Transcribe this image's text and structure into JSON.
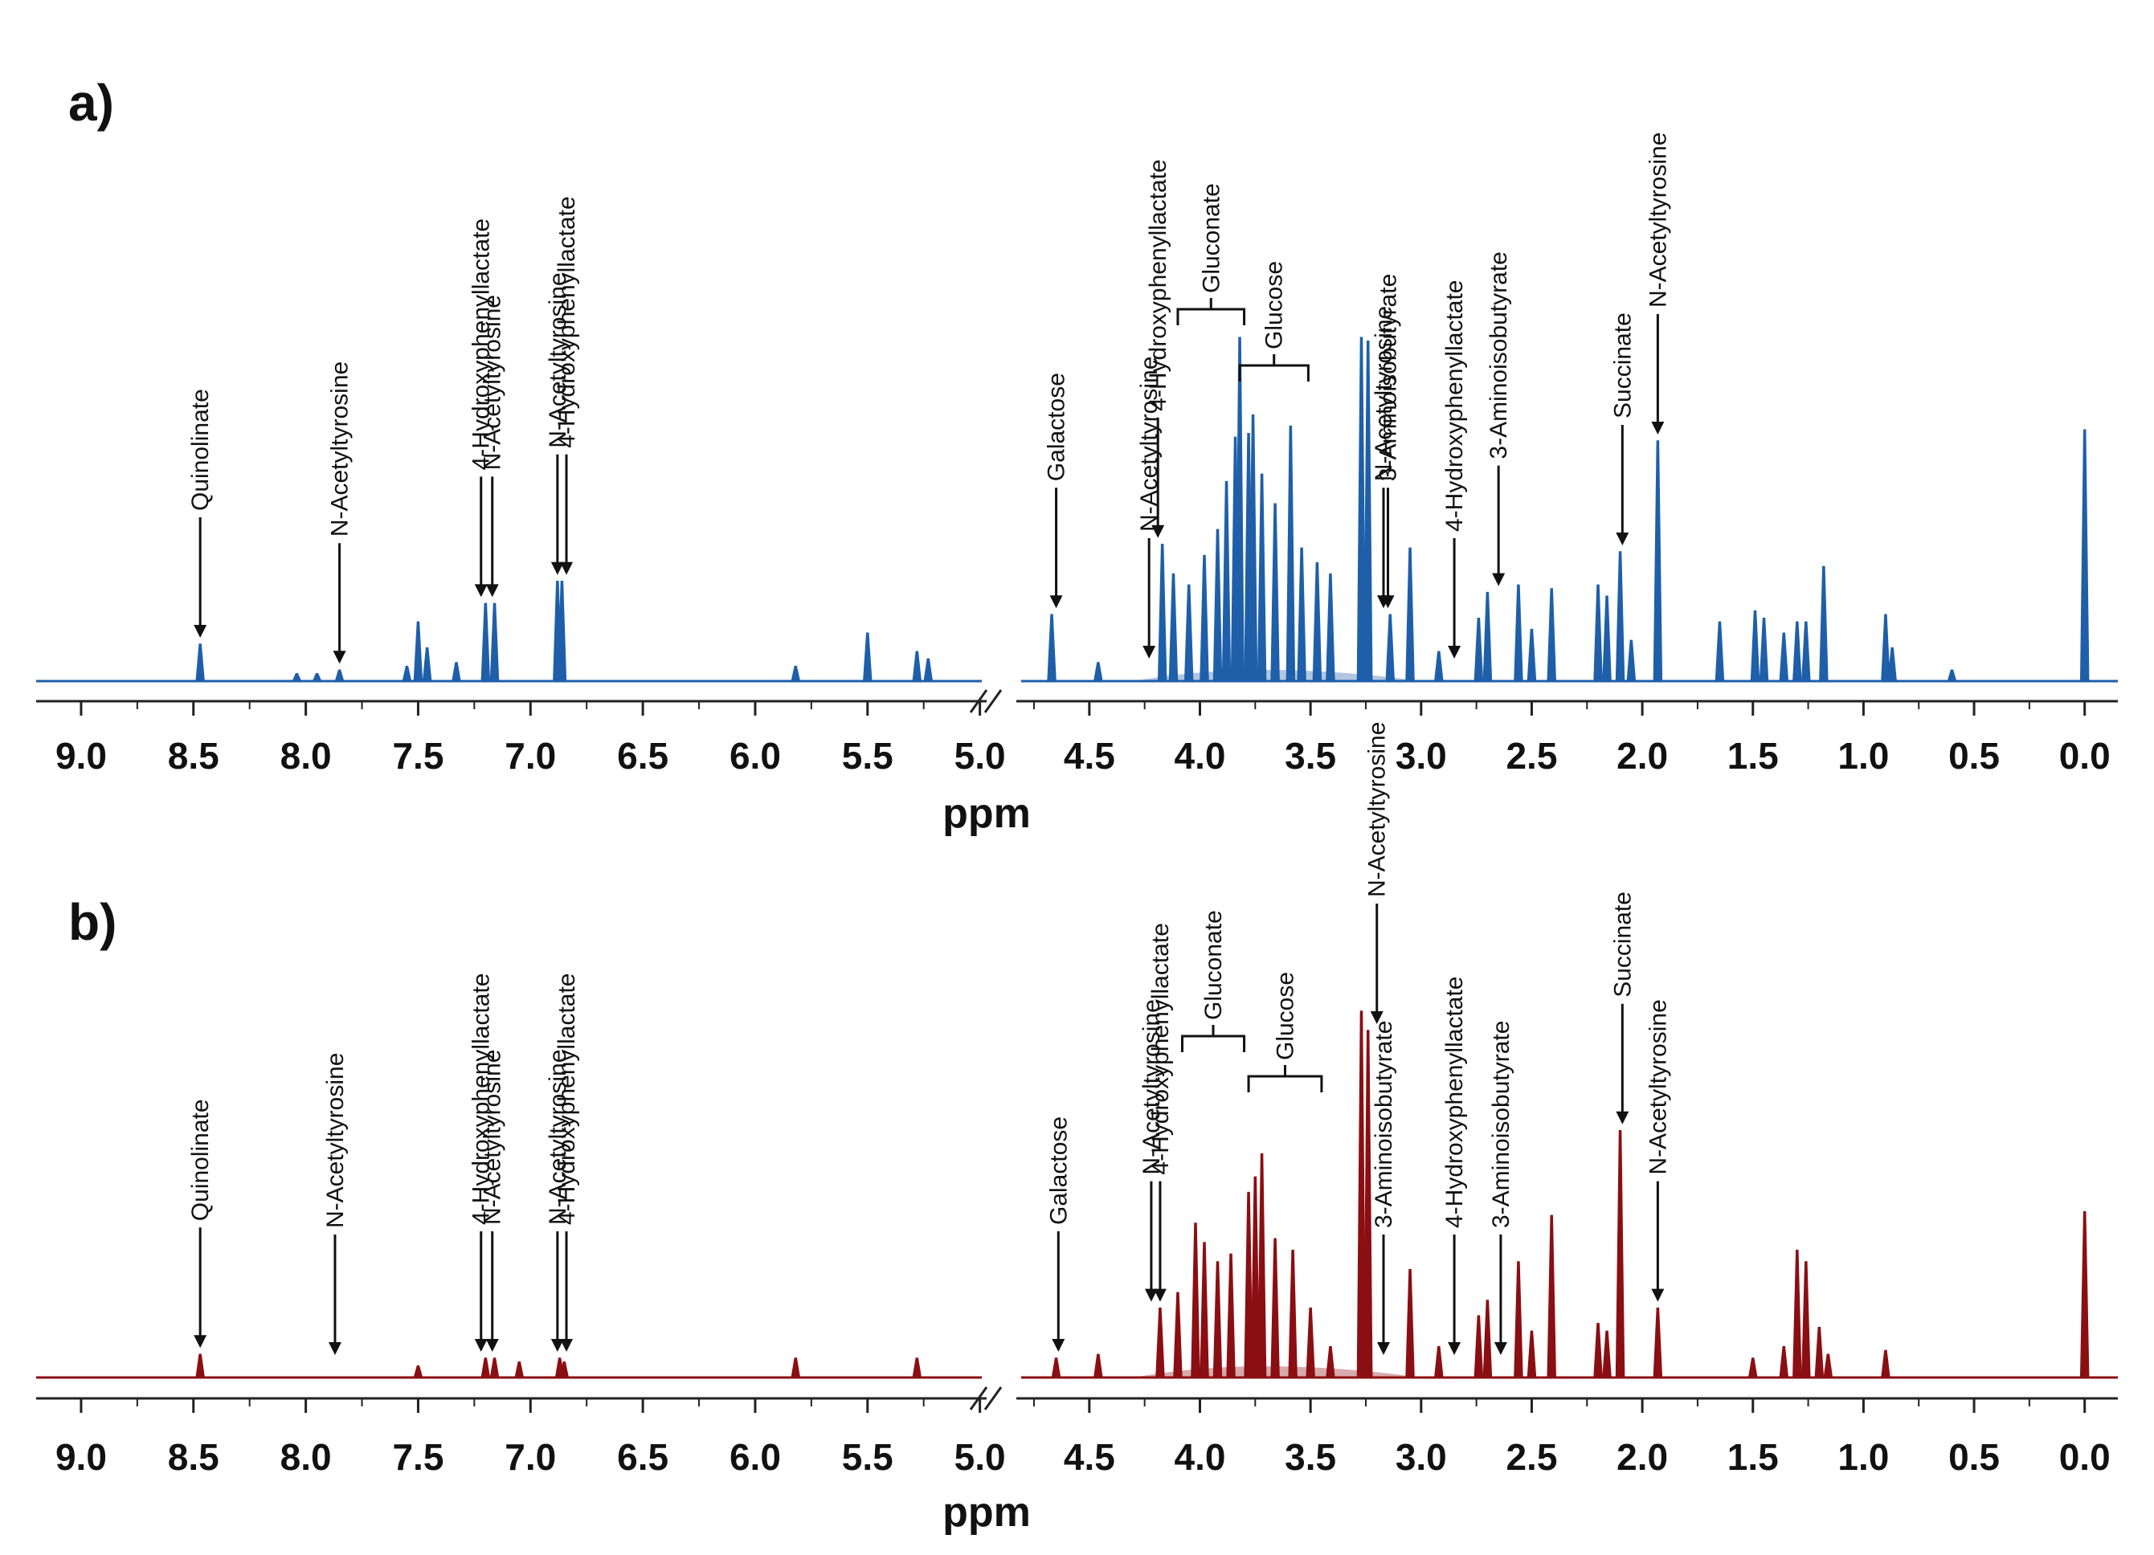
{
  "chart_data": [
    {
      "type": "line",
      "panel_label": "a)",
      "color": "#1f5faa",
      "xlabel": "ppm",
      "x_axis_reversed": true,
      "x_range": [
        9.2,
        -0.15
      ],
      "axis_break": [
        4.97,
        4.83
      ],
      "ticks": [
        "9.0",
        "8.5",
        "8.0",
        "7.5",
        "7.0",
        "6.5",
        "6.0",
        "5.5",
        "5.0",
        "4.5",
        "4.0",
        "3.5",
        "3.0",
        "2.5",
        "2.0",
        "1.5",
        "1.0",
        "0.5",
        "0.0"
      ],
      "tick_values": [
        9.0,
        8.5,
        8.0,
        7.5,
        7.0,
        6.5,
        6.0,
        5.5,
        5.0,
        4.5,
        4.0,
        3.5,
        3.0,
        2.5,
        2.0,
        1.5,
        1.0,
        0.5,
        0.0
      ],
      "peaks": [
        {
          "ppm": 8.47,
          "height": 0.1
        },
        {
          "ppm": 8.04,
          "height": 0.02
        },
        {
          "ppm": 7.95,
          "height": 0.02
        },
        {
          "ppm": 7.85,
          "height": 0.03
        },
        {
          "ppm": 7.55,
          "height": 0.04
        },
        {
          "ppm": 7.5,
          "height": 0.16
        },
        {
          "ppm": 7.46,
          "height": 0.09
        },
        {
          "ppm": 7.33,
          "height": 0.05
        },
        {
          "ppm": 7.2,
          "height": 0.21
        },
        {
          "ppm": 7.16,
          "height": 0.21
        },
        {
          "ppm": 6.88,
          "height": 0.27
        },
        {
          "ppm": 6.86,
          "height": 0.27
        },
        {
          "ppm": 5.82,
          "height": 0.04
        },
        {
          "ppm": 5.5,
          "height": 0.13
        },
        {
          "ppm": 5.28,
          "height": 0.08
        },
        {
          "ppm": 5.23,
          "height": 0.06
        },
        {
          "ppm": 4.67,
          "height": 0.18
        },
        {
          "ppm": 4.46,
          "height": 0.05
        },
        {
          "ppm": 4.17,
          "height": 0.37
        },
        {
          "ppm": 4.12,
          "height": 0.29
        },
        {
          "ppm": 4.05,
          "height": 0.26
        },
        {
          "ppm": 3.98,
          "height": 0.34
        },
        {
          "ppm": 3.92,
          "height": 0.41
        },
        {
          "ppm": 3.88,
          "height": 0.54
        },
        {
          "ppm": 3.84,
          "height": 0.66
        },
        {
          "ppm": 3.82,
          "height": 0.93
        },
        {
          "ppm": 3.78,
          "height": 0.67
        },
        {
          "ppm": 3.76,
          "height": 0.72
        },
        {
          "ppm": 3.72,
          "height": 0.56
        },
        {
          "ppm": 3.66,
          "height": 0.48
        },
        {
          "ppm": 3.59,
          "height": 0.69
        },
        {
          "ppm": 3.54,
          "height": 0.36
        },
        {
          "ppm": 3.47,
          "height": 0.32
        },
        {
          "ppm": 3.41,
          "height": 0.29
        },
        {
          "ppm": 3.27,
          "height": 0.93
        },
        {
          "ppm": 3.24,
          "height": 0.92
        },
        {
          "ppm": 3.14,
          "height": 0.18
        },
        {
          "ppm": 3.05,
          "height": 0.36
        },
        {
          "ppm": 2.92,
          "height": 0.08
        },
        {
          "ppm": 2.74,
          "height": 0.17
        },
        {
          "ppm": 2.7,
          "height": 0.24
        },
        {
          "ppm": 2.56,
          "height": 0.26
        },
        {
          "ppm": 2.5,
          "height": 0.14
        },
        {
          "ppm": 2.41,
          "height": 0.25
        },
        {
          "ppm": 2.2,
          "height": 0.26
        },
        {
          "ppm": 2.16,
          "height": 0.23
        },
        {
          "ppm": 2.1,
          "height": 0.35
        },
        {
          "ppm": 2.05,
          "height": 0.11
        },
        {
          "ppm": 1.93,
          "height": 0.65
        },
        {
          "ppm": 1.65,
          "height": 0.16
        },
        {
          "ppm": 1.49,
          "height": 0.19
        },
        {
          "ppm": 1.45,
          "height": 0.17
        },
        {
          "ppm": 1.36,
          "height": 0.13
        },
        {
          "ppm": 1.3,
          "height": 0.16
        },
        {
          "ppm": 1.26,
          "height": 0.16
        },
        {
          "ppm": 1.18,
          "height": 0.31
        },
        {
          "ppm": 0.9,
          "height": 0.18
        },
        {
          "ppm": 0.87,
          "height": 0.09
        },
        {
          "ppm": 0.6,
          "height": 0.03
        },
        {
          "ppm": 0.0,
          "height": 0.68
        }
      ],
      "annotations": [
        {
          "text": "Quinolinate",
          "ppm": 8.47,
          "type": "arrow"
        },
        {
          "text": "N-Acetyltyrosine",
          "ppm": 7.85,
          "type": "arrow"
        },
        {
          "text": "4-Hydroxyphenyllactate",
          "ppm": 7.22,
          "type": "arrow"
        },
        {
          "text": "N-Acetyltyrosine",
          "ppm": 7.17,
          "type": "arrow"
        },
        {
          "text": "N-Acetyltyrosine",
          "ppm": 6.88,
          "type": "arrow"
        },
        {
          "text": "4-Hydroxyphenyllactate",
          "ppm": 6.84,
          "type": "arrow"
        },
        {
          "text": "Galactose",
          "ppm": 4.65,
          "type": "arrow"
        },
        {
          "text": "N-Acetyltyrosine",
          "ppm": 4.23,
          "type": "arrow"
        },
        {
          "text": "4-Hydroxyphenyllactate",
          "ppm": 4.19,
          "type": "arrow"
        },
        {
          "text": "Gluconate",
          "ppm_range": [
            4.1,
            3.8
          ],
          "type": "bracket"
        },
        {
          "text": "Glucose",
          "ppm_range": [
            3.82,
            3.51
          ],
          "type": "bracket"
        },
        {
          "text": "N-Acetyltyrosine",
          "ppm": 3.17,
          "type": "arrow"
        },
        {
          "text": "3-Aminoisobutyrate",
          "ppm": 3.15,
          "type": "arrow"
        },
        {
          "text": "4-Hydroxyphenyllactate",
          "ppm": 2.85,
          "type": "arrow"
        },
        {
          "text": "3-Aminoisobutyrate",
          "ppm": 2.65,
          "type": "arrow"
        },
        {
          "text": "Succinate",
          "ppm": 2.09,
          "type": "arrow"
        },
        {
          "text": "N-Acetyltyrosine",
          "ppm": 1.93,
          "type": "arrow"
        }
      ]
    },
    {
      "type": "line",
      "panel_label": "b)",
      "color": "#8b0e12",
      "xlabel": "ppm",
      "x_axis_reversed": true,
      "x_range": [
        9.2,
        -0.15
      ],
      "axis_break": [
        4.97,
        4.83
      ],
      "ticks": [
        "9.0",
        "8.5",
        "8.0",
        "7.5",
        "7.0",
        "6.5",
        "6.0",
        "5.5",
        "5.0",
        "4.5",
        "4.0",
        "3.5",
        "3.0",
        "2.5",
        "2.0",
        "1.5",
        "1.0",
        "0.5",
        "0.0"
      ],
      "tick_values": [
        9.0,
        8.5,
        8.0,
        7.5,
        7.0,
        6.5,
        6.0,
        5.5,
        5.0,
        4.5,
        4.0,
        3.5,
        3.0,
        2.5,
        2.0,
        1.5,
        1.0,
        0.5,
        0.0
      ],
      "peaks": [
        {
          "ppm": 8.47,
          "height": 0.06
        },
        {
          "ppm": 7.5,
          "height": 0.03
        },
        {
          "ppm": 7.2,
          "height": 0.05
        },
        {
          "ppm": 7.16,
          "height": 0.05
        },
        {
          "ppm": 7.05,
          "height": 0.04
        },
        {
          "ppm": 6.87,
          "height": 0.05
        },
        {
          "ppm": 6.85,
          "height": 0.04
        },
        {
          "ppm": 5.82,
          "height": 0.05
        },
        {
          "ppm": 5.28,
          "height": 0.05
        },
        {
          "ppm": 4.65,
          "height": 0.05
        },
        {
          "ppm": 4.46,
          "height": 0.06
        },
        {
          "ppm": 4.18,
          "height": 0.18
        },
        {
          "ppm": 4.1,
          "height": 0.22
        },
        {
          "ppm": 4.02,
          "height": 0.4
        },
        {
          "ppm": 3.98,
          "height": 0.35
        },
        {
          "ppm": 3.92,
          "height": 0.3
        },
        {
          "ppm": 3.86,
          "height": 0.32
        },
        {
          "ppm": 3.78,
          "height": 0.48
        },
        {
          "ppm": 3.75,
          "height": 0.52
        },
        {
          "ppm": 3.72,
          "height": 0.58
        },
        {
          "ppm": 3.66,
          "height": 0.36
        },
        {
          "ppm": 3.58,
          "height": 0.33
        },
        {
          "ppm": 3.5,
          "height": 0.18
        },
        {
          "ppm": 3.41,
          "height": 0.08
        },
        {
          "ppm": 3.27,
          "height": 0.95
        },
        {
          "ppm": 3.24,
          "height": 0.9
        },
        {
          "ppm": 3.05,
          "height": 0.28
        },
        {
          "ppm": 2.92,
          "height": 0.08
        },
        {
          "ppm": 2.74,
          "height": 0.16
        },
        {
          "ppm": 2.7,
          "height": 0.2
        },
        {
          "ppm": 2.56,
          "height": 0.3
        },
        {
          "ppm": 2.5,
          "height": 0.12
        },
        {
          "ppm": 2.41,
          "height": 0.42
        },
        {
          "ppm": 2.2,
          "height": 0.14
        },
        {
          "ppm": 2.16,
          "height": 0.12
        },
        {
          "ppm": 2.1,
          "height": 0.64
        },
        {
          "ppm": 1.93,
          "height": 0.18
        },
        {
          "ppm": 1.5,
          "height": 0.05
        },
        {
          "ppm": 1.36,
          "height": 0.08
        },
        {
          "ppm": 1.3,
          "height": 0.33
        },
        {
          "ppm": 1.26,
          "height": 0.3
        },
        {
          "ppm": 1.2,
          "height": 0.13
        },
        {
          "ppm": 1.16,
          "height": 0.06
        },
        {
          "ppm": 0.9,
          "height": 0.07
        },
        {
          "ppm": 0.0,
          "height": 0.43
        }
      ],
      "annotations": [
        {
          "text": "Quinolinate",
          "ppm": 8.47,
          "type": "arrow"
        },
        {
          "text": "N-Acetyltyrosine",
          "ppm": 7.87,
          "type": "arrow"
        },
        {
          "text": "4-Hydroxyphenyllactate",
          "ppm": 7.22,
          "type": "arrow"
        },
        {
          "text": "N-Acetyltyrosine",
          "ppm": 7.17,
          "type": "arrow"
        },
        {
          "text": "N-Acetyltyrosine",
          "ppm": 6.88,
          "type": "arrow"
        },
        {
          "text": "4-Hydroxyphenyllactate",
          "ppm": 6.84,
          "type": "arrow"
        },
        {
          "text": "Galactose",
          "ppm": 4.64,
          "type": "arrow"
        },
        {
          "text": "N-Acetyltyrosine",
          "ppm": 4.22,
          "type": "arrow"
        },
        {
          "text": "4-Hydroxyphenyllactate",
          "ppm": 4.18,
          "type": "arrow"
        },
        {
          "text": "Gluconate",
          "ppm_range": [
            4.08,
            3.8
          ],
          "type": "bracket"
        },
        {
          "text": "Glucose",
          "ppm_range": [
            3.78,
            3.45
          ],
          "type": "bracket"
        },
        {
          "text": "N-Acetyltyrosine",
          "ppm": 3.2,
          "type": "arrow"
        },
        {
          "text": "3-Aminoisobutyrate",
          "ppm": 3.17,
          "type": "arrow"
        },
        {
          "text": "4-Hydroxyphenyllactate",
          "ppm": 2.85,
          "type": "arrow"
        },
        {
          "text": "3-Aminoisobutyrate",
          "ppm": 2.64,
          "type": "arrow"
        },
        {
          "text": "Succinate",
          "ppm": 2.09,
          "type": "arrow"
        },
        {
          "text": "N-Acetyltyrosine",
          "ppm": 1.93,
          "type": "arrow"
        }
      ]
    }
  ]
}
